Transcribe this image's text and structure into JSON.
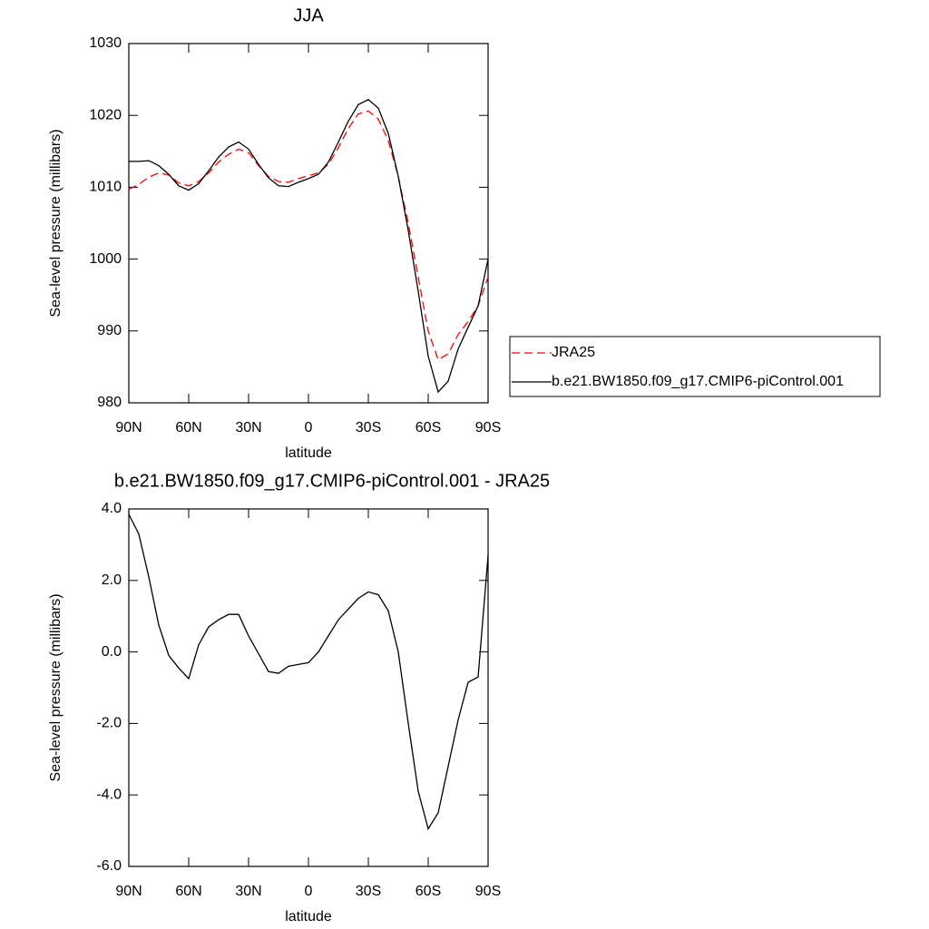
{
  "chart_data": [
    {
      "type": "line",
      "title": "JJA",
      "x_label": "latitude",
      "y_label": "Sea-level pressure (millibars)",
      "x": [
        90,
        85,
        80,
        75,
        70,
        65,
        60,
        55,
        50,
        45,
        40,
        35,
        30,
        25,
        20,
        15,
        10,
        5,
        0,
        -5,
        -10,
        -15,
        -20,
        -25,
        -30,
        -35,
        -40,
        -45,
        -50,
        -55,
        -60,
        -65,
        -70,
        -75,
        -80,
        -85,
        -90
      ],
      "series": [
        {
          "name": "JRA25",
          "color": "#ff0000",
          "dash": true,
          "values": [
            1009.7,
            1010.4,
            1011.4,
            1012.0,
            1011.7,
            1010.6,
            1010.2,
            1010.8,
            1012.0,
            1013.5,
            1014.6,
            1015.3,
            1014.8,
            1013.0,
            1011.5,
            1010.8,
            1010.7,
            1011.2,
            1011.6,
            1012.0,
            1013.2,
            1015.5,
            1018.2,
            1020.2,
            1020.6,
            1019.5,
            1016.5,
            1011.5,
            1005.0,
            997.5,
            990.0,
            986.0,
            986.8,
            989.5,
            991.3,
            993.5,
            997.5
          ]
        },
        {
          "name": "b.e21.BW1850.f09_g17.CMIP6-piControl.001",
          "color": "#000000",
          "dash": false,
          "values": [
            1013.6,
            1013.6,
            1013.7,
            1013.0,
            1011.8,
            1010.2,
            1009.6,
            1010.5,
            1012.3,
            1014.2,
            1015.6,
            1016.3,
            1015.3,
            1013.2,
            1011.3,
            1010.2,
            1010.1,
            1010.7,
            1011.2,
            1011.8,
            1013.5,
            1016.3,
            1019.2,
            1021.5,
            1022.2,
            1021.0,
            1017.5,
            1011.5,
            1004.0,
            995.5,
            986.5,
            981.5,
            983.0,
            987.5,
            990.5,
            993.5,
            1000.0
          ]
        }
      ],
      "xlim": [
        90,
        -90
      ],
      "xticks": [
        {
          "value": 90,
          "label": "90N"
        },
        {
          "value": 60,
          "label": "60N"
        },
        {
          "value": 30,
          "label": "30N"
        },
        0,
        {
          "value": -30,
          "label": "30S"
        },
        {
          "value": -60,
          "label": "60S"
        },
        {
          "value": -90,
          "label": "90S"
        }
      ],
      "ylim": [
        980,
        1030
      ],
      "yticks": [
        980,
        990,
        1000,
        1010,
        1020,
        1030
      ],
      "legend": "right"
    },
    {
      "type": "line",
      "title": "b.e21.BW1850.f09_g17.CMIP6-piControl.001 - JRA25",
      "x_label": "latitude",
      "y_label": "Sea-level pressure (millibars)",
      "x": [
        90,
        85,
        80,
        75,
        70,
        65,
        60,
        55,
        50,
        45,
        40,
        35,
        30,
        25,
        20,
        15,
        10,
        5,
        0,
        -5,
        -10,
        -15,
        -20,
        -25,
        -30,
        -35,
        -40,
        -45,
        -50,
        -55,
        -60,
        -65,
        -70,
        -75,
        -80,
        -85,
        -90
      ],
      "series": [
        {
          "color": "#000000",
          "dash": false,
          "values": [
            3.85,
            3.3,
            2.1,
            0.75,
            -0.1,
            -0.45,
            -0.75,
            0.2,
            0.7,
            0.9,
            1.05,
            1.05,
            0.45,
            -0.05,
            -0.55,
            -0.6,
            -0.4,
            -0.35,
            -0.3,
            0.0,
            0.45,
            0.9,
            1.2,
            1.5,
            1.68,
            1.6,
            1.15,
            0.0,
            -2.0,
            -3.9,
            -4.95,
            -4.5,
            -3.2,
            -1.9,
            -0.85,
            -0.7,
            2.7
          ]
        }
      ],
      "xlim": [
        90,
        -90
      ],
      "xticks": [
        {
          "value": 90,
          "label": "90N"
        },
        {
          "value": 60,
          "label": "60N"
        },
        {
          "value": 30,
          "label": "30N"
        },
        0,
        {
          "value": -30,
          "label": "30S"
        },
        {
          "value": -60,
          "label": "60S"
        },
        {
          "value": -90,
          "label": "90S"
        }
      ],
      "ylim": [
        -6,
        4
      ],
      "yticks": [
        {
          "value": -6,
          "label": "-6.0"
        },
        {
          "value": -4,
          "label": "-4.0"
        },
        {
          "value": -2,
          "label": "-2.0"
        },
        {
          "value": 0,
          "label": "0.0"
        },
        {
          "value": 2,
          "label": "2.0"
        },
        {
          "value": 4,
          "label": "4.0"
        }
      ]
    }
  ]
}
